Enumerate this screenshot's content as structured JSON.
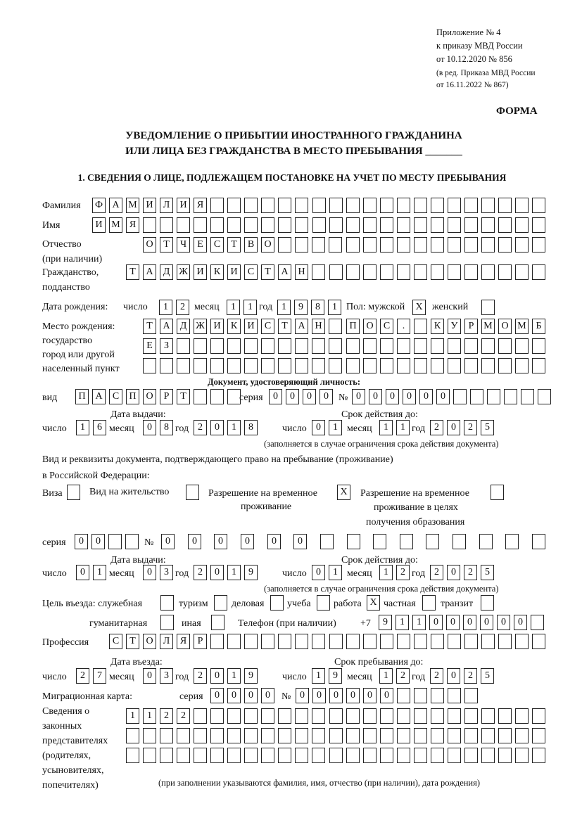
{
  "header": {
    "appendix": "Приложение № 4",
    "order": "к приказу МВД России",
    "order_date": "от 10.12.2020 № 856",
    "revision1": "(в ред. Приказа МВД России",
    "revision2": "от 16.11.2022 № 867)",
    "form_label": "ФОРМА",
    "title1": "УВЕДОМЛЕНИЕ О ПРИБЫТИИ ИНОСТРАННОГО ГРАЖДАНИНА",
    "title2": "ИЛИ ЛИЦА БЕЗ ГРАЖДАНСТВА В МЕСТО ПРЕБЫВАНИЯ _______",
    "section1": "1. СВЕДЕНИЯ О ЛИЦЕ, ПОДЛЕЖАЩЕМ ПОСТАНОВКЕ НА УЧЕТ ПО МЕСТУ ПРЕБЫВАНИЯ"
  },
  "labels": {
    "surname": "Фамилия",
    "name": "Имя",
    "patronymic": "Отчество",
    "patronymic2": "(при наличии)",
    "citizenship": "Гражданство,",
    "citizenship2": "подданство",
    "dob": "Дата рождения:",
    "day": "число",
    "month": "месяц",
    "year": "год",
    "sex": "Пол: мужской",
    "female": "женский",
    "birthplace1": "Место рождения:",
    "birthplace2": "государство",
    "birthplace3": "город или другой",
    "birthplace4": "населенный пункт",
    "id_doc": "Документ, удостоверяющий личность:",
    "kind": "вид",
    "series": "серия",
    "number": "№",
    "issue_date": "Дата выдачи:",
    "valid_until": "Срок действия до:",
    "validity_note": "(заполняется в случае ограничения срока действия документа)",
    "right_doc1": "Вид и реквизиты документа, подтверждающего право на пребывание (проживание)",
    "right_doc2": "в Российской Федерации:",
    "visa": "Виза",
    "residence": "Вид на жительство",
    "temp_permit1": "Разрешение на временное",
    "temp_permit2": "проживание",
    "edu_permit1": "Разрешение на временное",
    "edu_permit2": "проживание в целях",
    "edu_permit3": "получения образования",
    "purpose": "Цель въезда: служебная",
    "tourism": "туризм",
    "business": "деловая",
    "study": "учеба",
    "work": "работа",
    "private": "частная",
    "transit": "транзит",
    "humanitarian": "гуманитарная",
    "other": "иная",
    "phone": "Телефон (при наличии)",
    "phone_prefix": "+7",
    "profession": "Профессия",
    "entry_date": "Дата въезда:",
    "stay_until": "Срок пребывания до:",
    "migration_card": "Миграционная карта:",
    "reps1": "Сведения о",
    "reps2": "законных",
    "reps3": "представителях",
    "reps4": "(родителях,",
    "reps5": "усыновителях,",
    "reps6": "попечителях)",
    "reps_note": "(при заполнении указываются фамилия, имя, отчество (при наличии), дата рождения)"
  },
  "fields": {
    "surname": "ФАМИЛИЯ",
    "name": "ИМЯ",
    "patronymic": "ОТЧЕСТВО",
    "citizenship": "ТАДЖИКИСТАН",
    "dob_day": "12",
    "dob_month": "11",
    "dob_year": "1981",
    "sex_male": "X",
    "sex_female": "",
    "birthplace_1": "ТАДЖИКИСТАН ПОС. КУРМОМБ",
    "birthplace_2": "ЕЗ",
    "birthplace_3": "",
    "doc_kind": "ПАСПОРТ",
    "doc_series": "0000",
    "doc_number": "000000",
    "doc_issue_day": "16",
    "doc_issue_month": "08",
    "doc_issue_year": "2018",
    "doc_valid_day": "01",
    "doc_valid_month": "11",
    "doc_valid_year": "2025",
    "visa": "",
    "residence": "",
    "temp_permit": "X",
    "edu_permit": "",
    "right_series": "00",
    "right_number": "000000",
    "right_issue_day": "01",
    "right_issue_month": "03",
    "right_issue_year": "2019",
    "right_valid_day": "01",
    "right_valid_month": "12",
    "right_valid_year": "2025",
    "purpose_official": "",
    "purpose_tourism": "",
    "purpose_business": "",
    "purpose_study": "",
    "purpose_work": "X",
    "purpose_private": "",
    "purpose_transit": "",
    "purpose_humanitarian": "",
    "purpose_other": "",
    "phone": "911000000",
    "profession": "СТОЛЯР",
    "entry_day": "27",
    "entry_month": "03",
    "entry_year": "2019",
    "stay_day": "19",
    "stay_month": "12",
    "stay_year": "2025",
    "mig_series": "0000",
    "mig_number": "000000",
    "reps_1": "1122",
    "reps_2": "",
    "reps_3": ""
  }
}
